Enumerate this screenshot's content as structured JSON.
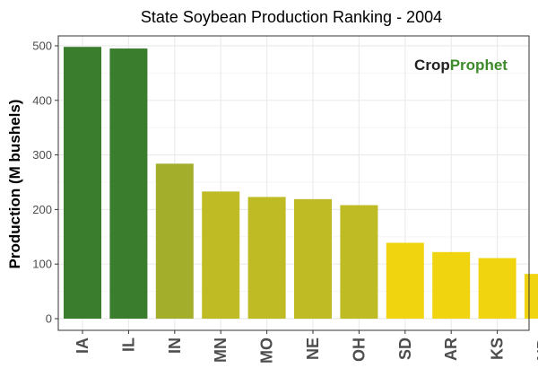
{
  "chart_data": {
    "type": "bar",
    "title": "State Soybean Production Ranking - 2004",
    "xlabel": "",
    "ylabel": "Production (M bushels)",
    "categories": [
      "IA",
      "IL",
      "IN",
      "MN",
      "MO",
      "NE",
      "OH",
      "SD",
      "AR",
      "KS",
      "ND"
    ],
    "values": [
      498,
      495,
      284,
      233,
      223,
      219,
      208,
      139,
      122,
      111,
      82
    ],
    "bar_colors": [
      "#3a7d2c",
      "#3a7d2c",
      "#a3ae2a",
      "#bfbb25",
      "#bfbb25",
      "#bfbb25",
      "#bfbb25",
      "#efd40f",
      "#efd40f",
      "#efd40f",
      "#efd40f"
    ],
    "ylim": [
      0,
      525
    ],
    "yticks": [
      0,
      100,
      200,
      300,
      400,
      500
    ],
    "grid": true,
    "legend": "none"
  },
  "logo": {
    "part1": "Crop",
    "part2": "Prophet"
  },
  "colors": {
    "panel_border": "#333333",
    "grid_major": "#ebebeb",
    "grid_minor": "#f5f5f5"
  }
}
